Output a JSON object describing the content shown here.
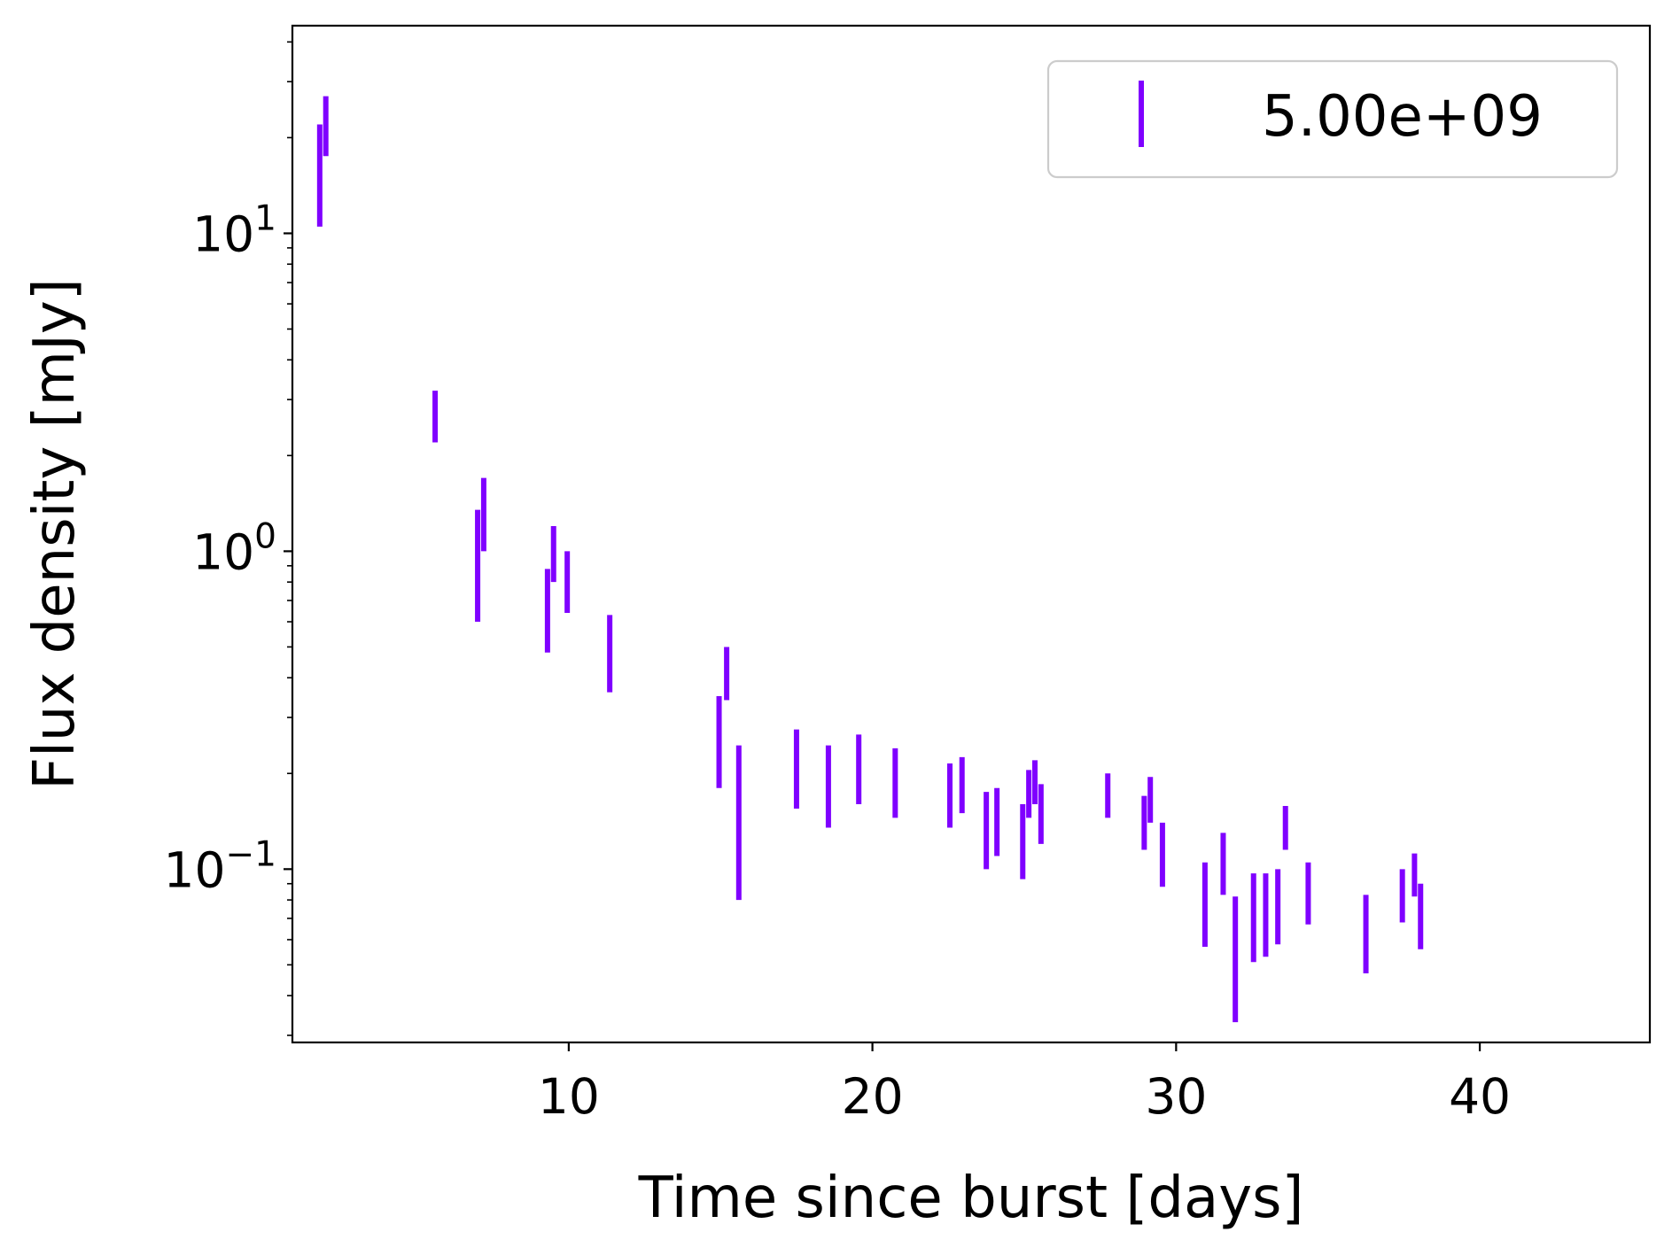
{
  "chart_data": {
    "type": "errorbar",
    "title": "",
    "xlabel": "Time since burst [days]",
    "ylabel": "Flux density [mJy]",
    "xscale": "linear",
    "yscale": "log",
    "xlim": [
      0.9,
      45.6
    ],
    "ylim": [
      0.0285,
      45
    ],
    "xticks": [
      10,
      20,
      30,
      40
    ],
    "yticks": [
      {
        "value": 0.1,
        "base": "10",
        "exp": "−1"
      },
      {
        "value": 1,
        "base": "10",
        "exp": "0"
      },
      {
        "value": 10,
        "base": "10",
        "exp": "1"
      }
    ],
    "grid": false,
    "legend": {
      "position": "top-right",
      "entries": [
        "5.00e+09"
      ]
    },
    "series": [
      {
        "name": "5.00e+09",
        "color": "#7f00ff",
        "marker": "errorbar-only",
        "points": [
          {
            "x": 1.8,
            "low": 10.5,
            "high": 22.0
          },
          {
            "x": 2.0,
            "low": 17.5,
            "high": 27.0
          },
          {
            "x": 5.6,
            "low": 2.2,
            "high": 3.2
          },
          {
            "x": 7.0,
            "low": 0.6,
            "high": 1.35
          },
          {
            "x": 7.2,
            "low": 1.0,
            "high": 1.7
          },
          {
            "x": 9.3,
            "low": 0.48,
            "high": 0.88
          },
          {
            "x": 9.5,
            "low": 0.8,
            "high": 1.2
          },
          {
            "x": 9.95,
            "low": 0.64,
            "high": 1.0
          },
          {
            "x": 11.35,
            "low": 0.36,
            "high": 0.63
          },
          {
            "x": 14.95,
            "low": 0.18,
            "high": 0.35
          },
          {
            "x": 15.2,
            "low": 0.34,
            "high": 0.5
          },
          {
            "x": 15.6,
            "low": 0.08,
            "high": 0.245
          },
          {
            "x": 17.5,
            "low": 0.155,
            "high": 0.275
          },
          {
            "x": 18.55,
            "low": 0.135,
            "high": 0.245
          },
          {
            "x": 19.55,
            "low": 0.16,
            "high": 0.265
          },
          {
            "x": 20.75,
            "low": 0.145,
            "high": 0.24
          },
          {
            "x": 22.55,
            "low": 0.135,
            "high": 0.215
          },
          {
            "x": 22.95,
            "low": 0.15,
            "high": 0.225
          },
          {
            "x": 23.75,
            "low": 0.1,
            "high": 0.175
          },
          {
            "x": 24.1,
            "low": 0.11,
            "high": 0.18
          },
          {
            "x": 24.95,
            "low": 0.093,
            "high": 0.16
          },
          {
            "x": 25.15,
            "low": 0.145,
            "high": 0.205
          },
          {
            "x": 25.35,
            "low": 0.16,
            "high": 0.22
          },
          {
            "x": 25.55,
            "low": 0.12,
            "high": 0.185
          },
          {
            "x": 27.75,
            "low": 0.145,
            "high": 0.2
          },
          {
            "x": 28.95,
            "low": 0.115,
            "high": 0.17
          },
          {
            "x": 29.15,
            "low": 0.14,
            "high": 0.195
          },
          {
            "x": 29.55,
            "low": 0.088,
            "high": 0.14
          },
          {
            "x": 30.95,
            "low": 0.057,
            "high": 0.105
          },
          {
            "x": 31.55,
            "low": 0.083,
            "high": 0.13
          },
          {
            "x": 31.95,
            "low": 0.033,
            "high": 0.082
          },
          {
            "x": 32.55,
            "low": 0.051,
            "high": 0.097
          },
          {
            "x": 32.95,
            "low": 0.053,
            "high": 0.097
          },
          {
            "x": 33.35,
            "low": 0.058,
            "high": 0.1
          },
          {
            "x": 33.6,
            "low": 0.115,
            "high": 0.158
          },
          {
            "x": 34.35,
            "low": 0.067,
            "high": 0.105
          },
          {
            "x": 36.25,
            "low": 0.047,
            "high": 0.083
          },
          {
            "x": 37.45,
            "low": 0.068,
            "high": 0.1
          },
          {
            "x": 37.85,
            "low": 0.082,
            "high": 0.112
          },
          {
            "x": 38.05,
            "low": 0.056,
            "high": 0.09
          }
        ]
      }
    ]
  }
}
